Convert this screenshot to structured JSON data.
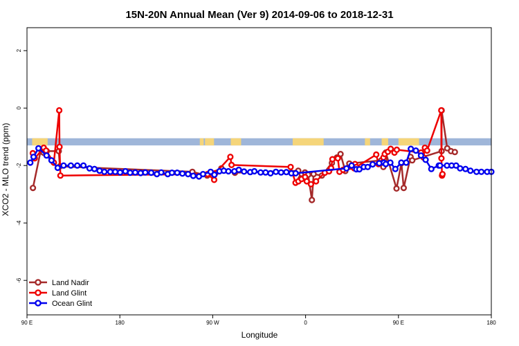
{
  "chart_data": {
    "type": "line",
    "title": "15N-20N Annual Mean (Ver 9)   2014-09-06 to 2018-12-31",
    "xlabel": "Longitude",
    "ylabel": "XCO2 - MLO trend (ppm)",
    "xlim": [
      90,
      450
    ],
    "ylim": [
      -7.2,
      2.8
    ],
    "x_ticks": [
      {
        "value": 90,
        "label": "90 E"
      },
      {
        "value": 162,
        "label": "180"
      },
      {
        "value": 234,
        "label": "90 W"
      },
      {
        "value": 306,
        "label": "0"
      },
      {
        "value": 378,
        "label": "90 E"
      },
      {
        "value": 450,
        "label": "180"
      }
    ],
    "y_ticks": [
      -6,
      -4,
      -2,
      0,
      2
    ],
    "land_mask": {
      "y_range": [
        -1.3,
        -1.05
      ],
      "ocean_color": "#9fb6d9",
      "land_color": "#f5d57a",
      "land_segments": [
        [
          94,
          106
        ],
        [
          224,
          227
        ],
        [
          228,
          235
        ],
        [
          248,
          256
        ],
        [
          296,
          320
        ],
        [
          352,
          356
        ],
        [
          365,
          370
        ],
        [
          378,
          394
        ]
      ]
    },
    "series": [
      {
        "name": "Land Nadir",
        "color": "#a52a2a",
        "x": [
          94.6,
          100.8,
          102.7,
          105.3,
          114.6,
          115.5,
          218.2,
          229.7,
          232.9,
          240.7,
          251.2,
          300.3,
          302.3,
          305.5,
          308.0,
          310.9,
          312.2,
          318.6,
          326.4,
          330.3,
          333.1,
          336.8,
          339.9,
          364.7,
          366.3,
          367.3,
          368.2,
          376.5,
          380.3,
          382.1,
          387.4,
          388.7,
          411.5,
          411.5,
          415.8,
          418.7,
          421.7
        ],
        "y": [
          -2.78,
          -1.45,
          -1.55,
          -1.5,
          -1.5,
          -2.03,
          -2.22,
          -2.35,
          -2.25,
          -2.1,
          -2.25,
          -2.18,
          -2.45,
          -2.24,
          -2.32,
          -3.2,
          -2.3,
          -2.35,
          -1.91,
          -1.72,
          -1.6,
          -2.19,
          -1.93,
          -1.82,
          -2.05,
          -1.78,
          -1.55,
          -2.8,
          -1.92,
          -2.78,
          -1.7,
          -1.82,
          -1.5,
          -0.08,
          -1.4,
          -1.5,
          -1.53
        ]
      },
      {
        "name": "Land Glint",
        "color": "#ee0000",
        "x": [
          94.5,
          96.0,
          103.0,
          104.8,
          110.8,
          115.0,
          115.2,
          115.9,
          230.0,
          235.1,
          236.0,
          247.7,
          248.6,
          294.4,
          298.2,
          300.4,
          302.9,
          305.6,
          306.9,
          310.2,
          314.1,
          320.9,
          324.2,
          325.8,
          326.8,
          331.0,
          332.3,
          335.1,
          343.7,
          344.3,
          345.3,
          360.8,
          362.5,
          366.4,
          367.4,
          369.8,
          372.0,
          374.9,
          376.7,
          395.5,
          397.5,
          398.5,
          400.2,
          411.2,
          411.3,
          411.8,
          412.1
        ],
        "y": [
          -1.57,
          -1.75,
          -1.38,
          -1.48,
          -1.9,
          -0.08,
          -1.35,
          -2.35,
          -2.3,
          -2.5,
          -2.27,
          -1.7,
          -1.98,
          -2.05,
          -2.6,
          -2.55,
          -2.47,
          -2.4,
          -2.55,
          -2.65,
          -2.55,
          -2.25,
          -2.2,
          -2.09,
          -1.78,
          -1.75,
          -2.22,
          -2.15,
          -2.1,
          -1.95,
          -2.05,
          -1.62,
          -1.95,
          -1.72,
          -1.6,
          -1.52,
          -1.42,
          -1.55,
          -1.45,
          -1.55,
          -1.72,
          -1.38,
          -1.48,
          -0.08,
          -1.75,
          -2.35,
          -2.3
        ]
      },
      {
        "name": "Ocean Glint",
        "color": "#0000ee",
        "x": [
          92.6,
          95.1,
          98.9,
          105.2,
          109.0,
          113.8,
          118.4,
          124.0,
          129.0,
          133.8,
          138.5,
          142.3,
          146.3,
          150.0,
          154.6,
          158.4,
          162.2,
          166.3,
          170.0,
          173.9,
          178.1,
          181.7,
          186.3,
          190.7,
          194.1,
          199.1,
          202.4,
          206.5,
          210.5,
          214.9,
          218.9,
          223.3,
          226.5,
          232.4,
          235.3,
          239.2,
          242.6,
          246.2,
          250.8,
          254.2,
          258.3,
          263.1,
          266.3,
          271.1,
          275.0,
          278.8,
          283.0,
          287.0,
          291.1,
          295.0,
          298.3,
          337.7,
          341.7,
          345.3,
          347.7,
          351.1,
          354.2,
          358.0,
          363.1,
          366.7,
          368.2,
          371.7,
          375.6,
          380.2,
          384.0,
          387.6,
          391.5,
          395.5,
          399.1,
          403.5,
          409.3,
          410.2,
          415.6,
          419.2,
          422.7,
          425.8,
          430.0,
          433.8,
          438.5,
          442.3,
          446.8,
          450.0
        ],
        "y": [
          -1.9,
          -1.7,
          -1.4,
          -1.65,
          -1.82,
          -2.08,
          -2.0,
          -2.0,
          -2.0,
          -2.0,
          -2.1,
          -2.12,
          -2.18,
          -2.22,
          -2.22,
          -2.22,
          -2.24,
          -2.2,
          -2.25,
          -2.24,
          -2.26,
          -2.24,
          -2.25,
          -2.3,
          -2.24,
          -2.3,
          -2.25,
          -2.25,
          -2.28,
          -2.3,
          -2.36,
          -2.38,
          -2.3,
          -2.22,
          -2.32,
          -2.2,
          -2.18,
          -2.2,
          -2.2,
          -2.15,
          -2.21,
          -2.23,
          -2.2,
          -2.24,
          -2.24,
          -2.27,
          -2.22,
          -2.24,
          -2.23,
          -2.27,
          -2.27,
          -2.1,
          -2.0,
          -2.13,
          -2.13,
          -2.05,
          -2.05,
          -1.96,
          -1.92,
          -1.9,
          -1.95,
          -1.9,
          -2.12,
          -1.9,
          -1.9,
          -1.42,
          -1.48,
          -1.65,
          -1.8,
          -2.12,
          -2.0,
          -2.0,
          -2.0,
          -2.0,
          -2.0,
          -2.1,
          -2.12,
          -2.18,
          -2.22,
          -2.22,
          -2.22,
          -2.22
        ]
      }
    ],
    "legend": {
      "placement": "bottom-left"
    }
  }
}
